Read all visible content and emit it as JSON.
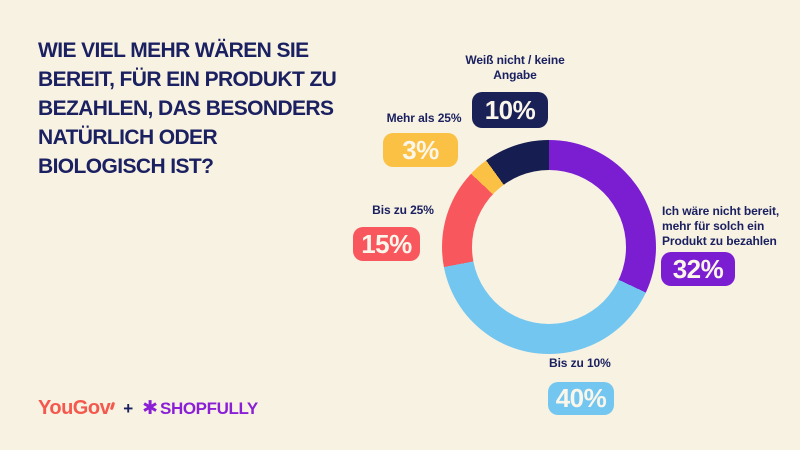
{
  "page": {
    "background": "#F8F2E3",
    "ink": "#1B2160"
  },
  "title": {
    "lines": [
      "WIE VIEL MEHR WÄREN SIE",
      "BEREIT, FÜR EIN PRODUKT ZU",
      "BEZAHLEN, DAS BESONDERS",
      "NATÜRLICH ODER",
      "BIOLOGISCH IST?"
    ]
  },
  "chart_data": {
    "type": "pie",
    "variant": "donut",
    "title": "Wie viel mehr wären Sie bereit, für ein Produkt zu bezahlen, das besonders natürlich oder biologisch ist?",
    "unit": "%",
    "start_angle_deg": 0,
    "direction": "clockwise",
    "segments": [
      {
        "label": "Ich wäre nicht bereit, mehr für solch ein Produkt zu bezahlen",
        "value": 32,
        "color": "#7B1ED2"
      },
      {
        "label": "Bis zu 10%",
        "value": 40,
        "color": "#73C6EF"
      },
      {
        "label": "Bis zu 25%",
        "value": 15,
        "color": "#F9575E"
      },
      {
        "label": "Mehr als 25%",
        "value": 3,
        "color": "#FAC144"
      },
      {
        "label": "Weiß nicht / keine Angabe",
        "value": 10,
        "color": "#161D50"
      }
    ]
  },
  "callouts": {
    "weiss": {
      "label": "Weiß nicht / keine Angabe",
      "value_text": "10%",
      "badge_color": "#1A2157"
    },
    "mehr": {
      "label": "Mehr als 25%",
      "value_text": "3%",
      "badge_color": "#FAC144"
    },
    "bis25": {
      "label": "Bis zu 25%",
      "value_text": "15%",
      "badge_color": "#F9575E"
    },
    "nicht": {
      "label": "Ich wäre nicht bereit, mehr für solch ein Produkt zu bezahlen",
      "value_text": "32%",
      "badge_color": "#7B1ED2"
    },
    "bis10": {
      "label": "Bis zu 10%",
      "value_text": "40%",
      "badge_color": "#73C6EF"
    }
  },
  "footer": {
    "yougov_text": "YouGov",
    "yougov_color": "#F4594E",
    "plus": "+",
    "star_icon": "✱",
    "shopfully_text": "SHOPFULLY",
    "shopfully_color": "#8A1FD6"
  }
}
